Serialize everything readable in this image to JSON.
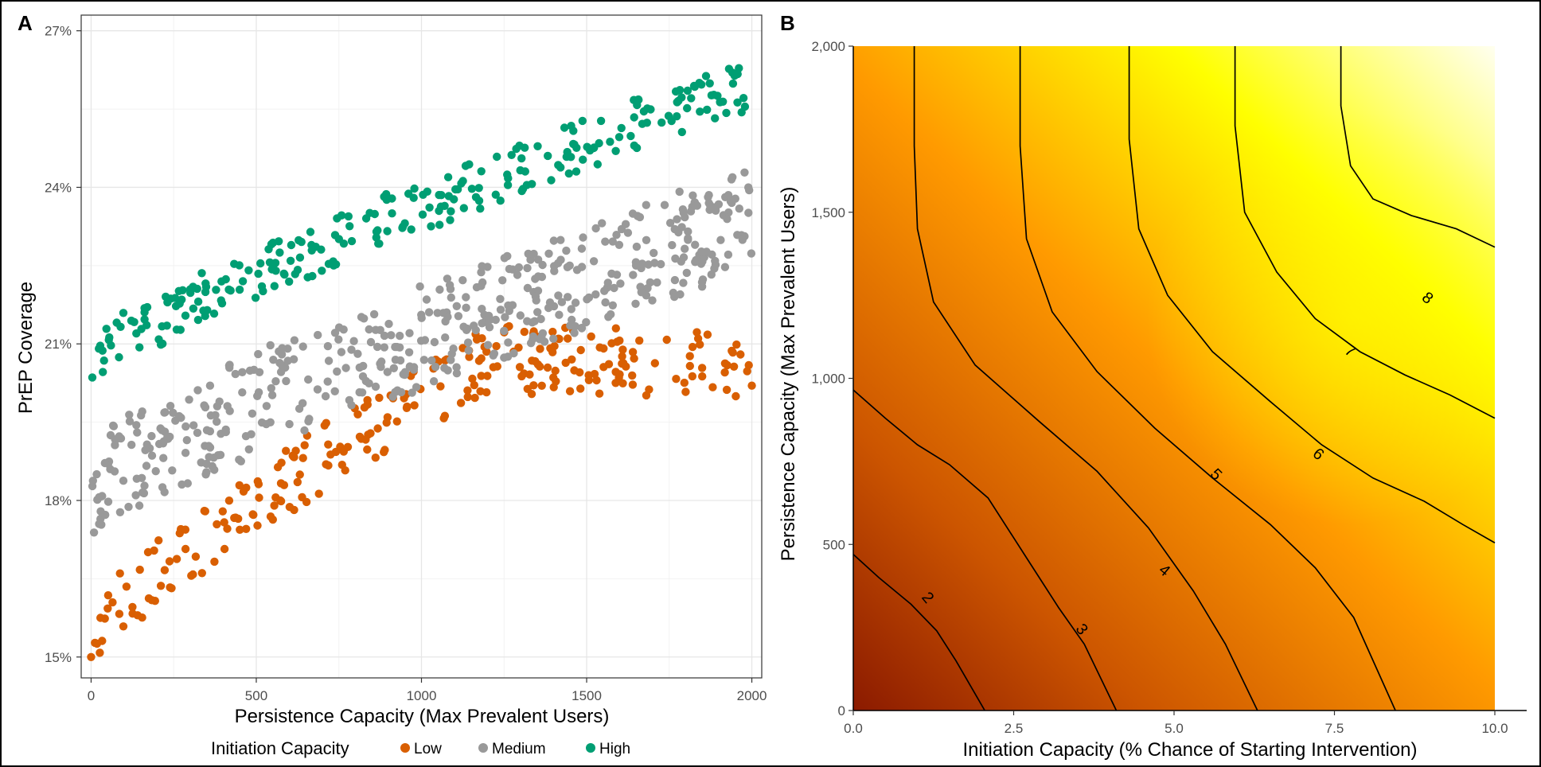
{
  "chart_data": [
    {
      "type": "scatter",
      "panel_label": "A",
      "xlabel": "Persistence Capacity (Max Prevalent Users)",
      "ylabel": "PrEP Coverage",
      "xlim": [
        -30,
        2030
      ],
      "ylim": [
        14.6,
        27.3
      ],
      "x_ticks": [
        0,
        500,
        1000,
        1500,
        2000
      ],
      "x_tick_labels": [
        "0",
        "500",
        "1000",
        "1500",
        "2000"
      ],
      "y_ticks": [
        15,
        18,
        21,
        24,
        27
      ],
      "y_tick_labels": [
        "15%",
        "18%",
        "21%",
        "24%",
        "27%"
      ],
      "grid": true,
      "legend": {
        "title": "Initiation Capacity",
        "position": "bottom",
        "entries": [
          "Low",
          "Medium",
          "High"
        ]
      },
      "colors": {
        "Low": "#d95f02",
        "Medium": "#999999",
        "High": "#009e73"
      },
      "series": [
        {
          "name": "Low",
          "trend": {
            "start": [
              0,
              15.3
            ],
            "knee_x": 1200,
            "knee_y": 20.7,
            "end": [
              2000,
              20.6
            ]
          },
          "spread": 0.65,
          "n_points": 260
        },
        {
          "name": "Medium",
          "trend": {
            "start": [
              0,
              18.3
            ],
            "end": [
              2000,
              23.4
            ]
          },
          "spread": 1.0,
          "n_points": 480
        },
        {
          "name": "High",
          "trend": {
            "start": [
              0,
              20.7
            ],
            "end": [
              2000,
              26.0
            ]
          },
          "spread": 0.5,
          "n_points": 260
        }
      ]
    },
    {
      "type": "contour",
      "panel_label": "B",
      "xlabel": "Initiation Capacity (% Chance of Starting Intervention)",
      "ylabel": "Persistence Capacity (Max Prevalent Users)",
      "xlim": [
        0,
        10
      ],
      "ylim": [
        0,
        2000
      ],
      "x_ticks": [
        0,
        2.5,
        5,
        7.5,
        10
      ],
      "x_tick_labels": [
        "0.0",
        "2.5",
        "5.0",
        "7.5",
        "10.0"
      ],
      "y_ticks": [
        0,
        500,
        1000,
        1500,
        2000
      ],
      "y_tick_labels": [
        "0",
        "500",
        "1,000",
        "1,500",
        "2,000"
      ],
      "grid": false,
      "color_scale": [
        "#8b1a00",
        "#cc5500",
        "#ff9a00",
        "#ffff00",
        "#fffff0"
      ],
      "contour_levels": [
        {
          "level": "2",
          "bottom_x": 2.05,
          "top_x": null,
          "left_y": 470
        },
        {
          "level": "3",
          "bottom_x": 4.1,
          "top_x": null,
          "left_y": 965
        },
        {
          "level": "4",
          "bottom_x": 6.3,
          "top_x": 0.95
        },
        {
          "level": "5",
          "bottom_x": 8.45,
          "top_x": 2.6
        },
        {
          "level": "6",
          "bottom_x": 10.0,
          "top_x": 4.3,
          "right_y": 505
        },
        {
          "level": "7",
          "bottom_x": 10.0,
          "top_x": 5.95,
          "right_y": 880
        },
        {
          "level": "8",
          "bottom_x": 10.0,
          "top_x": 7.6,
          "right_y": 1395
        }
      ]
    }
  ]
}
